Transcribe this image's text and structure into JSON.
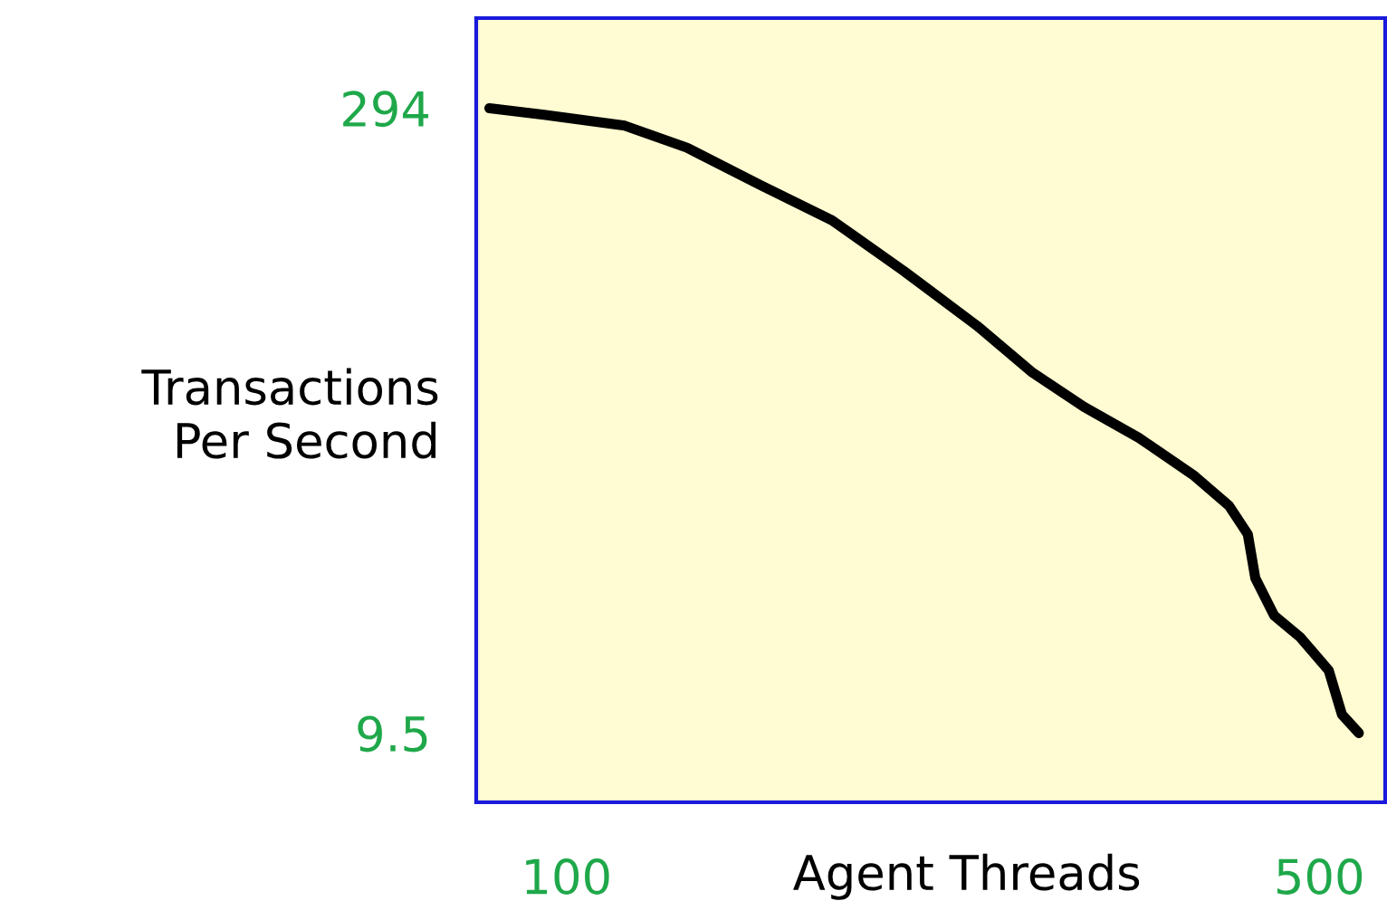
{
  "chart_data": {
    "type": "line",
    "xlabel": "Agent Threads",
    "ylabel": "Transactions\nPer Second",
    "x": [
      59,
      88,
      131,
      164,
      203,
      241,
      279,
      318,
      347,
      375,
      404,
      433,
      452,
      462,
      466,
      476,
      490,
      505,
      512,
      521
    ],
    "series": [
      {
        "color": "#000000",
        "values": [
          294,
          291,
          286,
          276,
          259,
          243,
          220,
          195,
          174,
          158,
          144,
          127,
          113,
          100,
          80,
          63,
          53,
          38,
          18,
          9.5
        ]
      }
    ],
    "xlim": [
      52,
      535
    ],
    "ylim": [
      -22,
      335
    ],
    "xticks": [
      100,
      500
    ],
    "yticks": [
      294,
      9.5
    ],
    "grid": false,
    "legend": false,
    "marker": "none",
    "line_style": "solid"
  }
}
